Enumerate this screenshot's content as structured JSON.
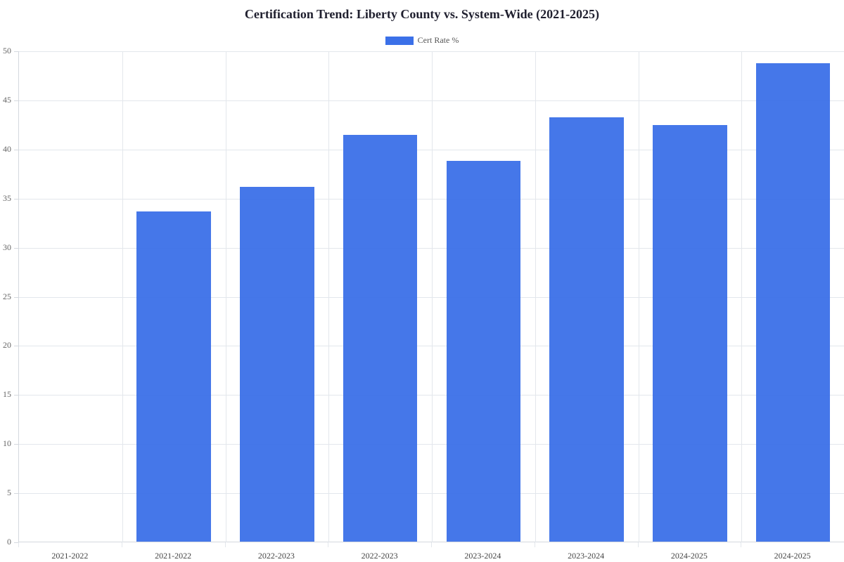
{
  "chart_data": {
    "type": "bar",
    "title": "Certification Trend: Liberty County vs. System-Wide (2021-2025)",
    "xlabel": "",
    "ylabel": "",
    "ylim": [
      0,
      50
    ],
    "yticks": [
      0,
      5,
      10,
      15,
      20,
      25,
      30,
      35,
      40,
      45,
      50
    ],
    "grid": true,
    "legend_position": "top-center",
    "categories": [
      "2021-2022",
      "2021-2022",
      "2022-2023",
      "2022-2023",
      "2023-2024",
      "2023-2024",
      "2024-2025",
      "2024-2025"
    ],
    "series": [
      {
        "name": "Cert Rate %",
        "color": "#3b70e8",
        "values": [
          null,
          33.6,
          36.1,
          41.4,
          38.8,
          43.2,
          42.4,
          48.7
        ]
      }
    ]
  },
  "legend": {
    "label": "Cert Rate %",
    "color": "#3b70e8"
  }
}
